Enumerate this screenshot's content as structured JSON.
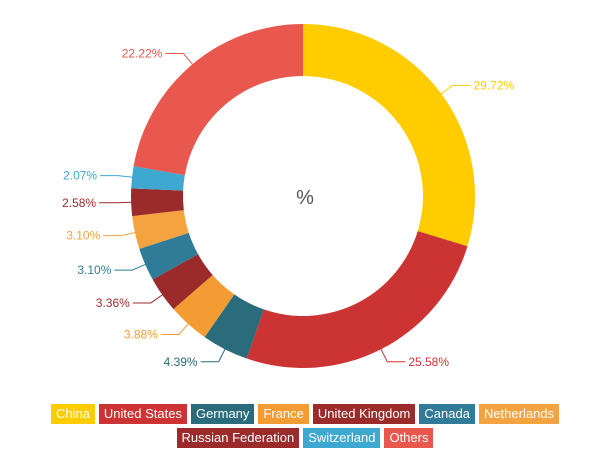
{
  "chart_data": {
    "type": "pie",
    "variant": "donut",
    "center_label": "%",
    "categories": [
      "China",
      "United States",
      "Germany",
      "France",
      "United Kingdom",
      "Canada",
      "Netherlands",
      "Russian Federation",
      "Switzerland",
      "Others"
    ],
    "values": [
      29.72,
      25.58,
      4.39,
      3.88,
      3.36,
      3.1,
      3.1,
      2.58,
      2.07,
      22.22
    ],
    "labels": [
      "29.72%",
      "25.58%",
      "4.39%",
      "3.88%",
      "3.36%",
      "3.10%",
      "3.10%",
      "2.58%",
      "2.07%",
      "22.22%"
    ],
    "colors": [
      "#ffcc00",
      "#cc3333",
      "#2a6b7c",
      "#f39c34",
      "#9b2a2a",
      "#2f7b98",
      "#f4a340",
      "#9b2a2a",
      "#3fa8d0",
      "#e8584f"
    ],
    "legend_position": "bottom"
  },
  "legend": {
    "row1": [
      {
        "label": "China",
        "color": "#ffcc00"
      },
      {
        "label": "United States",
        "color": "#cc3333"
      },
      {
        "label": "Germany",
        "color": "#2a6b7c"
      },
      {
        "label": "France",
        "color": "#f39c34"
      },
      {
        "label": "United Kingdom",
        "color": "#9b2a2a"
      },
      {
        "label": "Canada",
        "color": "#2f7b98"
      },
      {
        "label": "Netherlands",
        "color": "#f4a340"
      }
    ],
    "row2": [
      {
        "label": "Russian Federation",
        "color": "#9b2a2a"
      },
      {
        "label": "Switzerland",
        "color": "#3fa8d0"
      },
      {
        "label": "Others",
        "color": "#e8584f"
      }
    ]
  }
}
